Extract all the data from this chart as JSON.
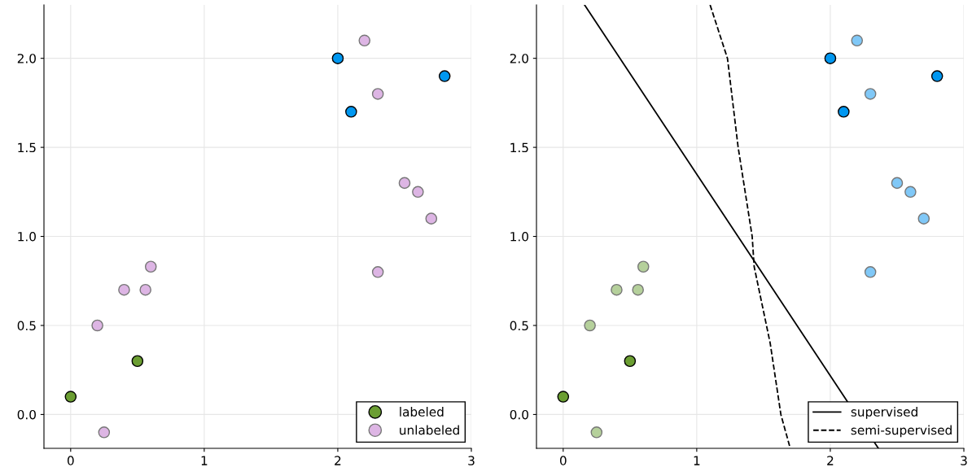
{
  "chart_data": [
    {
      "type": "scatter",
      "xlim": [
        -0.2,
        3.0
      ],
      "ylim": [
        -0.19,
        2.3
      ],
      "xticks": [
        0,
        1,
        2,
        3
      ],
      "yticks": [
        {
          "value": 0,
          "label": "0.0"
        },
        {
          "value": 0.5,
          "label": "0.5"
        },
        {
          "value": 1,
          "label": "1.0"
        },
        {
          "value": 1.5,
          "label": "1.5"
        },
        {
          "value": 2,
          "label": "2.0"
        }
      ],
      "grid": true,
      "legend": "bottom right",
      "marker": "circle",
      "series": [
        {
          "name": "labeled",
          "color": "#6b9e32",
          "x": [
            0,
            0.5,
            2,
            2.1,
            2.8
          ],
          "values": [
            0.1,
            0.3,
            2,
            1.7,
            1.9
          ],
          "colors": [
            "#6b9e32",
            "#6b9e32",
            "#0097f0",
            "#0097f0",
            "#0097f0"
          ]
        },
        {
          "name": "unlabeled",
          "color": "#ddb5e4",
          "x": [
            0.2,
            0.4,
            0.56,
            0.6,
            0.25,
            2.2,
            2.3,
            2.5,
            2.6,
            2.7,
            2.3
          ],
          "values": [
            0.5,
            0.7,
            0.7,
            0.83,
            -0.1,
            2.1,
            1.8,
            1.3,
            1.25,
            1.1,
            0.8
          ]
        }
      ]
    },
    {
      "type": "scatter",
      "xlim": [
        -0.2,
        3.0
      ],
      "ylim": [
        -0.19,
        2.3
      ],
      "xticks": [
        0,
        1,
        2,
        3
      ],
      "yticks": [
        {
          "value": 0,
          "label": "0.0"
        },
        {
          "value": 0.5,
          "label": "0.5"
        },
        {
          "value": 1,
          "label": "1.0"
        },
        {
          "value": 1.5,
          "label": "1.5"
        },
        {
          "value": 2,
          "label": "2.0"
        }
      ],
      "grid": true,
      "legend": "bottom right",
      "marker": "circle",
      "series": [
        {
          "type": "line",
          "name": "supervised",
          "color": "#000000",
          "line_style": "solid",
          "marker": "none",
          "x": [
            0.16,
            2.36
          ],
          "values": [
            2.3,
            -0.19
          ]
        },
        {
          "type": "line",
          "name": "semi-supervised",
          "color": "#000000",
          "line_style": "dashed",
          "marker": "none",
          "x": [
            1.1,
            1.23,
            1.31,
            1.415,
            1.43,
            1.55,
            1.63,
            1.7
          ],
          "values": [
            2.3,
            2.0,
            1.5,
            1.0,
            0.83,
            0.4,
            0,
            -0.19
          ]
        },
        {
          "color": "#b5d09b",
          "x": [
            0.2,
            0.4,
            0.56,
            0.6,
            0.25
          ],
          "values": [
            0.5,
            0.7,
            0.7,
            0.83,
            -0.1
          ]
        },
        {
          "color": "#80c8f7",
          "x": [
            2.2,
            2.3,
            2.5,
            2.6,
            2.7,
            2.3
          ],
          "values": [
            2.1,
            1.8,
            1.3,
            1.25,
            1.1,
            0.8
          ]
        },
        {
          "color": "#6b9e32",
          "x": [
            0,
            0.5,
            2,
            2.1,
            2.8
          ],
          "values": [
            0.1,
            0.3,
            2,
            1.7,
            1.9
          ],
          "colors": [
            "#6b9e32",
            "#6b9e32",
            "#0097f0",
            "#0097f0",
            "#0097f0"
          ]
        }
      ]
    }
  ]
}
